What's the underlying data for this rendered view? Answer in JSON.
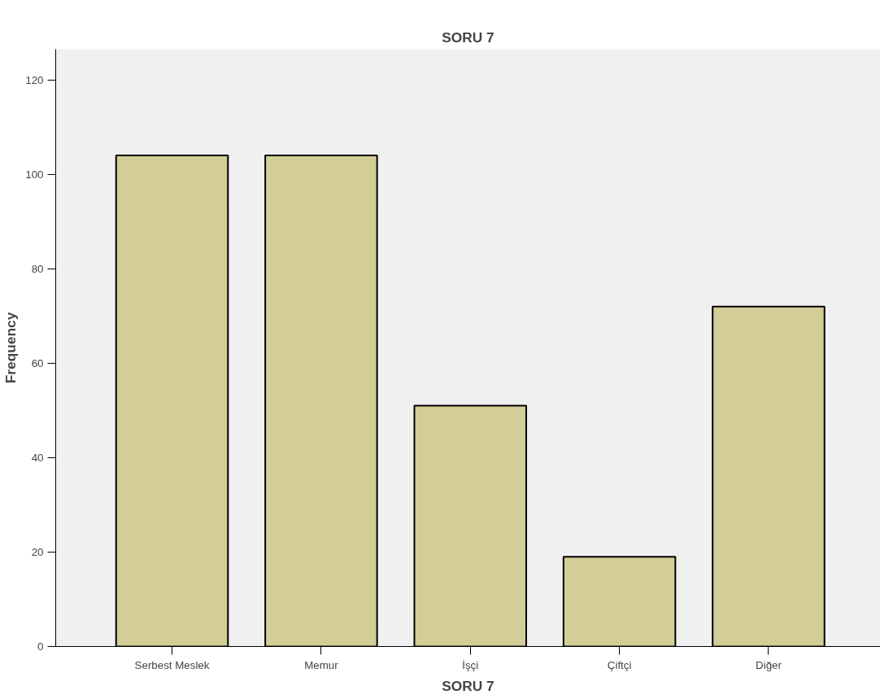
{
  "chart_data": {
    "type": "bar",
    "title": "SORU 7",
    "xlabel": "SORU 7",
    "ylabel": "Frequency",
    "categories": [
      "Serbest Meslek",
      "Memur",
      "İşçi",
      "Çiftçi",
      "Diğer"
    ],
    "values": [
      104,
      104,
      51,
      19,
      72
    ],
    "color": "#d3ce97",
    "ylim": [
      0,
      126.5
    ],
    "yticks": [
      0,
      20,
      40,
      60,
      80,
      100,
      120
    ],
    "grid": false
  }
}
